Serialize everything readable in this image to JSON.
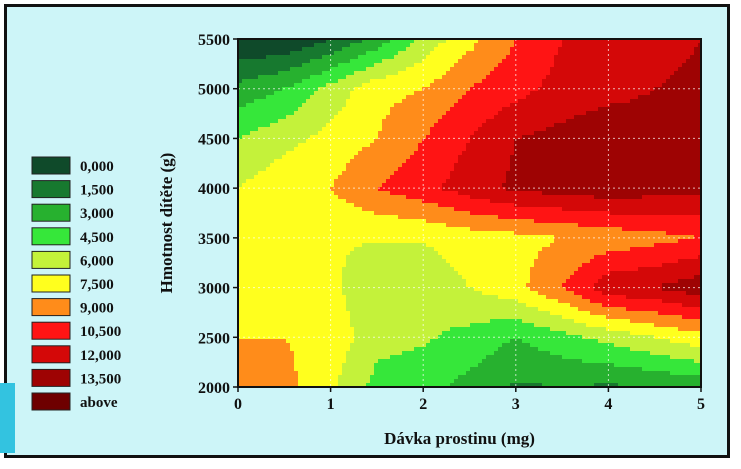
{
  "chart_data": {
    "type": "contour",
    "title": "",
    "xlabel": "Dávka prostinu (mg)",
    "ylabel": "Hmotnost dítěte (g)",
    "xlim": [
      0,
      5
    ],
    "ylim": [
      2000,
      5500
    ],
    "x_ticks": [
      "0",
      "1",
      "2",
      "3",
      "4",
      "5"
    ],
    "y_ticks": [
      "2000",
      "2500",
      "3000",
      "3500",
      "4000",
      "4500",
      "5000",
      "5500"
    ],
    "grid": true,
    "legend_position": "left",
    "levels": [
      {
        "label": "0,000",
        "color": "#0f4a2a"
      },
      {
        "label": "1,500",
        "color": "#17792f"
      },
      {
        "label": "3,000",
        "color": "#27b12f"
      },
      {
        "label": "4,500",
        "color": "#36e73a"
      },
      {
        "label": "6,000",
        "color": "#c4f23a"
      },
      {
        "label": "7,500",
        "color": "#ffff1e"
      },
      {
        "label": "9,000",
        "color": "#ff8c1a"
      },
      {
        "label": "10,500",
        "color": "#ff1414"
      },
      {
        "label": "12,000",
        "color": "#d40808"
      },
      {
        "label": "13,500",
        "color": "#9e0303"
      },
      {
        "label": "above",
        "color": "#6e0000"
      }
    ],
    "x_samples": [
      0,
      0.5,
      1,
      1.5,
      2,
      2.5,
      3,
      3.5,
      4,
      4.5,
      5
    ],
    "y_samples": [
      2000,
      2500,
      3000,
      3500,
      4000,
      4500,
      5000,
      5500
    ],
    "z": [
      [
        10.5,
        9.5,
        7.8,
        5.5,
        5.0,
        4.0,
        2.8,
        3.0,
        2.8,
        3.0,
        3.5
      ],
      [
        9.0,
        9.0,
        8.5,
        6.5,
        6.2,
        5.5,
        4.5,
        5.5,
        6.5,
        7.5,
        8.5
      ],
      [
        8.5,
        8.0,
        7.8,
        6.5,
        6.5,
        7.5,
        8.5,
        10.5,
        13.0,
        13.5,
        14.5
      ],
      [
        7.6,
        7.5,
        7.6,
        7.6,
        7.6,
        8.2,
        8.5,
        9.0,
        9.5,
        10.0,
        10.5
      ],
      [
        7.5,
        8.5,
        9.0,
        10.5,
        11.5,
        12.8,
        13.8,
        14.2,
        14.5,
        14.2,
        14.0
      ],
      [
        6.0,
        7.0,
        8.0,
        9.0,
        10.5,
        12.0,
        13.5,
        14.0,
        14.5,
        14.2,
        14.0
      ],
      [
        3.5,
        4.5,
        6.5,
        8.5,
        9.0,
        10.5,
        11.5,
        12.5,
        13.0,
        13.5,
        13.8
      ],
      [
        0.0,
        0.0,
        1.5,
        3.5,
        6.5,
        8.5,
        10.5,
        12.0,
        12.5,
        13.0,
        13.5
      ]
    ]
  }
}
